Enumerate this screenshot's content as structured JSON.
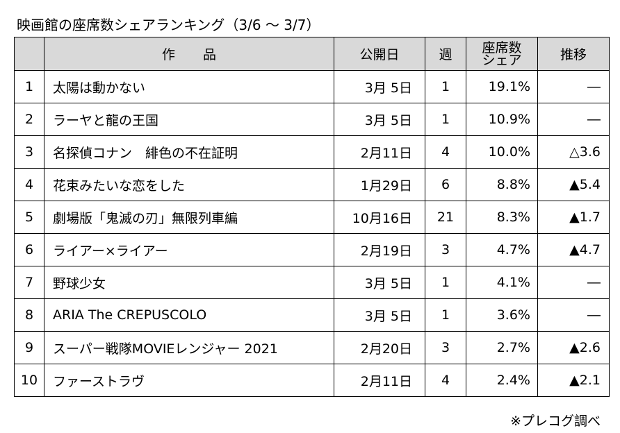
{
  "title": "映画館の座席数シェアランキング（3/6 ～ 3/7）",
  "headers": {
    "rank": "",
    "title": "作品",
    "release": "公開日",
    "week": "週",
    "share_line1": "座席数",
    "share_line2": "シェア",
    "trend": "推移"
  },
  "rows": [
    {
      "rank": "1",
      "title": "太陽は動かない",
      "release": "3月 5日",
      "week": "1",
      "share": "19.1%",
      "trend": "―"
    },
    {
      "rank": "2",
      "title": "ラーヤと龍の王国",
      "release": "3月 5日",
      "week": "1",
      "share": "10.9%",
      "trend": "―"
    },
    {
      "rank": "3",
      "title": "名探偵コナン　緋色の不在証明",
      "release": "2月11日",
      "week": "4",
      "share": "10.0%",
      "trend": "△3.6"
    },
    {
      "rank": "4",
      "title": "花束みたいな恋をした",
      "release": "1月29日",
      "week": "6",
      "share": "8.8%",
      "trend": "▲5.4"
    },
    {
      "rank": "5",
      "title": "劇場版「鬼滅の刃」無限列車編",
      "release": "10月16日",
      "week": "21",
      "share": "8.3%",
      "trend": "▲1.7"
    },
    {
      "rank": "6",
      "title": "ライアー×ライアー",
      "release": "2月19日",
      "week": "3",
      "share": "4.7%",
      "trend": "▲4.7"
    },
    {
      "rank": "7",
      "title": "野球少女",
      "release": "3月 5日",
      "week": "1",
      "share": "4.1%",
      "trend": "―"
    },
    {
      "rank": "8",
      "title": "ARIA The CREPUSCOLO",
      "release": "3月 5日",
      "week": "1",
      "share": "3.6%",
      "trend": "―"
    },
    {
      "rank": "9",
      "title": "スーパー戦隊MOVIEレンジャー 2021",
      "release": "2月20日",
      "week": "3",
      "share": "2.7%",
      "trend": "▲2.6"
    },
    {
      "rank": "10",
      "title": "ファーストラヴ",
      "release": "2月11日",
      "week": "4",
      "share": "2.4%",
      "trend": "▲2.1"
    }
  ],
  "source": "※プレコグ調べ",
  "colors": {
    "header_bg": "#d9d9d9",
    "border": "#000000"
  }
}
